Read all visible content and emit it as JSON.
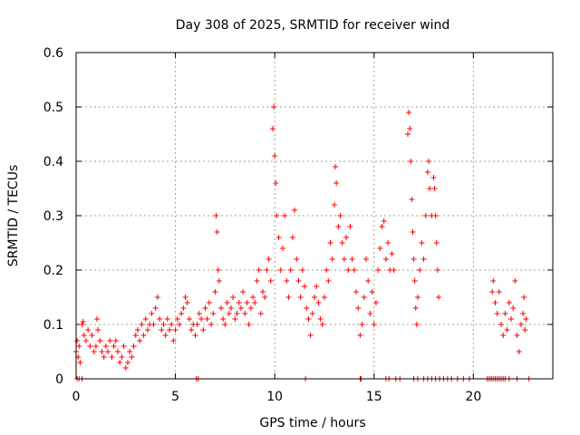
{
  "chart_data": {
    "type": "scatter",
    "title": "Day 308 of 2025, SRMTID for receiver wind",
    "xlabel": "GPS time / hours",
    "ylabel": "SRMTID / TECUs",
    "xlim": [
      0,
      24
    ],
    "ylim": [
      0,
      0.6
    ],
    "xticks": [
      0,
      5,
      10,
      15,
      20
    ],
    "yticks": [
      0,
      0.1,
      0.2,
      0.3,
      0.4,
      0.5,
      0.6
    ],
    "xtick_labels": [
      "0",
      "5",
      "10",
      "15",
      "20"
    ],
    "ytick_labels": [
      "0",
      "0.1",
      "0.2",
      "0.3",
      "0.4",
      "0.5",
      "0.6"
    ],
    "grid": true,
    "marker": "plus",
    "color": "#ff0000",
    "series": [
      {
        "name": "SRMTID",
        "points": [
          [
            0.0,
            0.05
          ],
          [
            0.05,
            0.07
          ],
          [
            0.1,
            0.04
          ],
          [
            0.15,
            0.06
          ],
          [
            0.2,
            0.03
          ],
          [
            0.3,
            0.1
          ],
          [
            0.35,
            0.105
          ],
          [
            0.4,
            0.08
          ],
          [
            0.5,
            0.07
          ],
          [
            0.6,
            0.09
          ],
          [
            0.7,
            0.06
          ],
          [
            0.8,
            0.08
          ],
          [
            0.9,
            0.05
          ],
          [
            1.0,
            0.06
          ],
          [
            1.05,
            0.11
          ],
          [
            1.1,
            0.09
          ],
          [
            1.2,
            0.07
          ],
          [
            1.3,
            0.05
          ],
          [
            1.4,
            0.04
          ],
          [
            1.5,
            0.06
          ],
          [
            1.6,
            0.05
          ],
          [
            1.7,
            0.07
          ],
          [
            1.8,
            0.04
          ],
          [
            1.9,
            0.06
          ],
          [
            2.0,
            0.07
          ],
          [
            2.1,
            0.05
          ],
          [
            2.2,
            0.03
          ],
          [
            2.3,
            0.04
          ],
          [
            2.4,
            0.06
          ],
          [
            2.5,
            0.02
          ],
          [
            2.6,
            0.03
          ],
          [
            2.7,
            0.05
          ],
          [
            2.8,
            0.04
          ],
          [
            2.9,
            0.06
          ],
          [
            3.0,
            0.08
          ],
          [
            3.1,
            0.09
          ],
          [
            3.2,
            0.07
          ],
          [
            3.3,
            0.1
          ],
          [
            3.4,
            0.08
          ],
          [
            3.5,
            0.11
          ],
          [
            3.6,
            0.09
          ],
          [
            3.7,
            0.1
          ],
          [
            3.8,
            0.12
          ],
          [
            3.9,
            0.1
          ],
          [
            4.0,
            0.13
          ],
          [
            4.1,
            0.15
          ],
          [
            4.2,
            0.11
          ],
          [
            4.3,
            0.09
          ],
          [
            4.4,
            0.1
          ],
          [
            4.5,
            0.08
          ],
          [
            4.6,
            0.11
          ],
          [
            4.7,
            0.09
          ],
          [
            4.8,
            0.1
          ],
          [
            4.9,
            0.07
          ],
          [
            5.0,
            0.09
          ],
          [
            5.1,
            0.11
          ],
          [
            5.2,
            0.1
          ],
          [
            5.3,
            0.12
          ],
          [
            5.4,
            0.13
          ],
          [
            5.5,
            0.15
          ],
          [
            5.6,
            0.14
          ],
          [
            5.7,
            0.11
          ],
          [
            5.8,
            0.09
          ],
          [
            5.9,
            0.1
          ],
          [
            6.0,
            0.08
          ],
          [
            6.1,
            0.1
          ],
          [
            6.2,
            0.12
          ],
          [
            6.3,
            0.11
          ],
          [
            6.4,
            0.09
          ],
          [
            6.5,
            0.13
          ],
          [
            6.6,
            0.11
          ],
          [
            6.7,
            0.14
          ],
          [
            6.8,
            0.1
          ],
          [
            6.9,
            0.12
          ],
          [
            7.0,
            0.16
          ],
          [
            7.05,
            0.3
          ],
          [
            7.1,
            0.27
          ],
          [
            7.15,
            0.2
          ],
          [
            7.2,
            0.18
          ],
          [
            7.3,
            0.13
          ],
          [
            7.4,
            0.11
          ],
          [
            7.5,
            0.1
          ],
          [
            7.6,
            0.14
          ],
          [
            7.7,
            0.12
          ],
          [
            7.8,
            0.13
          ],
          [
            7.9,
            0.15
          ],
          [
            8.0,
            0.11
          ],
          [
            8.1,
            0.12
          ],
          [
            8.2,
            0.14
          ],
          [
            8.3,
            0.13
          ],
          [
            8.4,
            0.16
          ],
          [
            8.5,
            0.12
          ],
          [
            8.6,
            0.14
          ],
          [
            8.7,
            0.1
          ],
          [
            8.8,
            0.13
          ],
          [
            8.9,
            0.15
          ],
          [
            9.0,
            0.14
          ],
          [
            9.1,
            0.18
          ],
          [
            9.2,
            0.2
          ],
          [
            9.3,
            0.12
          ],
          [
            9.4,
            0.16
          ],
          [
            9.5,
            0.15
          ],
          [
            9.6,
            0.2
          ],
          [
            9.7,
            0.22
          ],
          [
            9.8,
            0.18
          ],
          [
            9.9,
            0.46
          ],
          [
            9.95,
            0.5
          ],
          [
            10.0,
            0.41
          ],
          [
            10.05,
            0.36
          ],
          [
            10.1,
            0.3
          ],
          [
            10.2,
            0.26
          ],
          [
            10.3,
            0.2
          ],
          [
            10.4,
            0.24
          ],
          [
            10.5,
            0.3
          ],
          [
            10.6,
            0.18
          ],
          [
            10.7,
            0.15
          ],
          [
            10.8,
            0.2
          ],
          [
            10.9,
            0.26
          ],
          [
            11.0,
            0.31
          ],
          [
            11.1,
            0.22
          ],
          [
            11.2,
            0.18
          ],
          [
            11.3,
            0.15
          ],
          [
            11.4,
            0.2
          ],
          [
            11.5,
            0.17
          ],
          [
            11.6,
            0.13
          ],
          [
            11.7,
            0.11
          ],
          [
            11.8,
            0.08
          ],
          [
            11.9,
            0.12
          ],
          [
            12.0,
            0.15
          ],
          [
            12.1,
            0.17
          ],
          [
            12.2,
            0.14
          ],
          [
            12.3,
            0.11
          ],
          [
            12.4,
            0.1
          ],
          [
            12.5,
            0.15
          ],
          [
            12.6,
            0.2
          ],
          [
            12.7,
            0.18
          ],
          [
            12.8,
            0.25
          ],
          [
            12.9,
            0.22
          ],
          [
            13.0,
            0.32
          ],
          [
            13.05,
            0.39
          ],
          [
            13.1,
            0.36
          ],
          [
            13.2,
            0.28
          ],
          [
            13.3,
            0.3
          ],
          [
            13.4,
            0.25
          ],
          [
            13.5,
            0.22
          ],
          [
            13.6,
            0.26
          ],
          [
            13.7,
            0.2
          ],
          [
            13.8,
            0.28
          ],
          [
            13.9,
            0.22
          ],
          [
            14.0,
            0.2
          ],
          [
            14.1,
            0.16
          ],
          [
            14.2,
            0.13
          ],
          [
            14.3,
            0.08
          ],
          [
            14.4,
            0.1
          ],
          [
            14.5,
            0.15
          ],
          [
            14.6,
            0.22
          ],
          [
            14.7,
            0.18
          ],
          [
            14.8,
            0.12
          ],
          [
            14.9,
            0.16
          ],
          [
            15.0,
            0.1
          ],
          [
            15.1,
            0.14
          ],
          [
            15.2,
            0.2
          ],
          [
            15.3,
            0.24
          ],
          [
            15.4,
            0.28
          ],
          [
            15.5,
            0.29
          ],
          [
            15.6,
            0.22
          ],
          [
            15.7,
            0.25
          ],
          [
            15.8,
            0.2
          ],
          [
            15.9,
            0.23
          ],
          [
            16.0,
            0.2
          ],
          [
            16.7,
            0.45
          ],
          [
            16.75,
            0.49
          ],
          [
            16.8,
            0.46
          ],
          [
            16.85,
            0.4
          ],
          [
            16.9,
            0.33
          ],
          [
            16.95,
            0.27
          ],
          [
            17.0,
            0.22
          ],
          [
            17.05,
            0.18
          ],
          [
            17.1,
            0.13
          ],
          [
            17.15,
            0.1
          ],
          [
            17.2,
            0.15
          ],
          [
            17.3,
            0.2
          ],
          [
            17.4,
            0.25
          ],
          [
            17.5,
            0.22
          ],
          [
            17.6,
            0.3
          ],
          [
            17.7,
            0.38
          ],
          [
            17.75,
            0.4
          ],
          [
            17.8,
            0.35
          ],
          [
            17.9,
            0.3
          ],
          [
            18.0,
            0.37
          ],
          [
            18.05,
            0.35
          ],
          [
            18.1,
            0.3
          ],
          [
            18.15,
            0.25
          ],
          [
            18.2,
            0.2
          ],
          [
            18.25,
            0.15
          ],
          [
            20.95,
            0.16
          ],
          [
            21.0,
            0.18
          ],
          [
            21.1,
            0.14
          ],
          [
            21.2,
            0.12
          ],
          [
            21.3,
            0.16
          ],
          [
            21.4,
            0.1
          ],
          [
            21.5,
            0.08
          ],
          [
            21.6,
            0.12
          ],
          [
            21.7,
            0.09
          ],
          [
            21.8,
            0.14
          ],
          [
            21.9,
            0.11
          ],
          [
            22.0,
            0.13
          ],
          [
            22.1,
            0.18
          ],
          [
            22.2,
            0.08
          ],
          [
            22.3,
            0.05
          ],
          [
            22.4,
            0.1
          ],
          [
            22.5,
            0.12
          ],
          [
            22.55,
            0.15
          ],
          [
            22.6,
            0.09
          ],
          [
            22.65,
            0.11
          ]
        ]
      }
    ],
    "zero_points_x": [
      0.05,
      0.15,
      0.3,
      6.05,
      6.15,
      11.55,
      14.3,
      14.35,
      15.6,
      15.75,
      16.1,
      16.3,
      17.0,
      17.2,
      17.5,
      17.7,
      17.9,
      18.1,
      18.3,
      18.5,
      18.7,
      18.9,
      19.2,
      19.5,
      19.8,
      20.7,
      20.8,
      20.9,
      21.0,
      21.1,
      21.2,
      21.3,
      21.4,
      21.5,
      21.6,
      21.8,
      22.2,
      22.8
    ]
  }
}
